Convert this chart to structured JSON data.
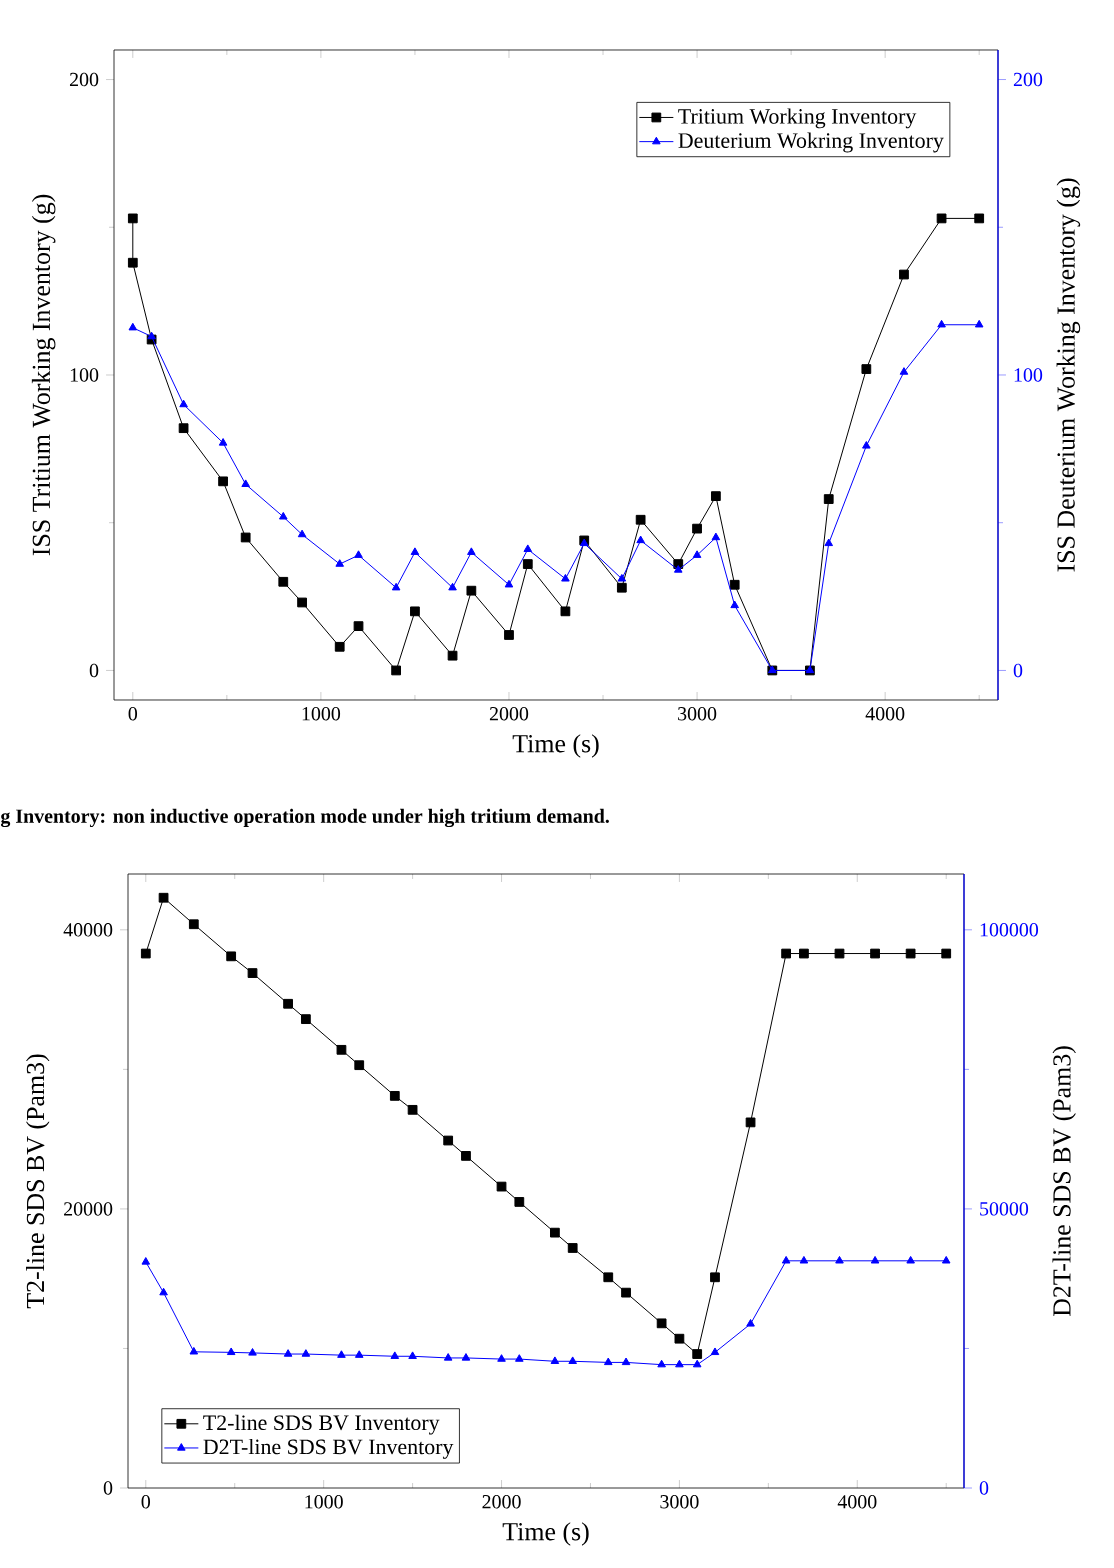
{
  "chart_data": [
    {
      "type": "line",
      "xlabel": "Time (s)",
      "ylabel": "ISS Tritium Working Inventory (g)",
      "y2label": "ISS Deuterium Working Inventory (g)",
      "xlim": [
        -100,
        4600
      ],
      "xticks": [
        0,
        {
          "value": 500,
          "label": null
        },
        1000,
        {
          "value": 1500,
          "label": null
        },
        2000,
        {
          "value": 2500,
          "label": null
        },
        3000,
        {
          "value": 3500,
          "label": null
        },
        4000,
        {
          "value": 4500,
          "label": null
        }
      ],
      "ylim": [
        -10,
        210
      ],
      "yticks": [
        0,
        {
          "value": 50,
          "label": null
        },
        100,
        {
          "value": 150,
          "label": null
        },
        200
      ],
      "y2lim": [
        -10,
        210
      ],
      "y2ticks": [
        0,
        {
          "value": 50,
          "label": null
        },
        100,
        {
          "value": 150,
          "label": null
        },
        200
      ],
      "legend": "top right",
      "line_style": "solid",
      "annotations": [
        "g Inventory: non inductive operation mode under high tritium demand."
      ],
      "series": [
        {
          "name": "Tritium Working Inventory",
          "color": "#000000",
          "marker": "square",
          "axis": "y",
          "x": [
            0,
            0,
            100,
            270,
            480,
            600,
            800,
            900,
            1100,
            1200,
            1400,
            1500,
            1700,
            1800,
            2000,
            2100,
            2300,
            2400,
            2600,
            2700,
            2900,
            3000,
            3100,
            3200,
            3400,
            3600,
            3700,
            3900,
            4100,
            4300,
            4500
          ],
          "values": [
            153,
            138,
            112,
            82,
            64,
            45,
            30,
            23,
            8,
            15,
            0,
            20,
            5,
            27,
            12,
            36,
            20,
            44,
            28,
            51,
            36,
            48,
            59,
            29,
            0,
            0,
            58,
            102,
            134,
            153,
            153
          ]
        },
        {
          "name": "Deuterium Wokring Inventory",
          "color": "#0000ff",
          "marker": "triangle",
          "axis": "y2",
          "x": [
            0,
            100,
            270,
            480,
            600,
            800,
            900,
            1100,
            1200,
            1400,
            1500,
            1700,
            1800,
            2000,
            2100,
            2300,
            2400,
            2600,
            2700,
            2900,
            3000,
            3100,
            3200,
            3400,
            3600,
            3700,
            3900,
            4100,
            4300,
            4500
          ],
          "values": [
            116,
            113,
            90,
            77,
            63,
            52,
            46,
            36,
            39,
            28,
            40,
            28,
            40,
            29,
            41,
            31,
            43,
            31,
            44,
            34,
            39,
            45,
            22,
            0,
            0,
            43,
            76,
            101,
            117,
            117
          ]
        }
      ]
    },
    {
      "type": "line",
      "xlabel": "Time (s)",
      "ylabel": "T2-line SDS BV (Pam3)",
      "y2label": "D2T-line SDS BV (Pam3)",
      "xlim": [
        -100,
        4600
      ],
      "xticks": [
        0,
        {
          "value": 500,
          "label": null
        },
        1000,
        {
          "value": 1500,
          "label": null
        },
        2000,
        {
          "value": 2500,
          "label": null
        },
        3000,
        {
          "value": 3500,
          "label": null
        },
        4000,
        {
          "value": 4500,
          "label": null
        }
      ],
      "ylim": [
        0,
        44000
      ],
      "yticks": [
        0,
        {
          "value": 10000,
          "label": null
        },
        20000,
        {
          "value": 30000,
          "label": null
        },
        40000
      ],
      "y2lim": [
        0,
        110000
      ],
      "y2ticks": [
        0,
        {
          "value": 25000,
          "label": null
        },
        50000,
        {
          "value": 75000,
          "label": null
        },
        100000
      ],
      "legend": "bottom left",
      "line_style": "solid",
      "x": [
        0,
        100,
        270,
        480,
        600,
        800,
        900,
        1100,
        1200,
        1400,
        1500,
        1700,
        1800,
        2000,
        2100,
        2300,
        2400,
        2600,
        2700,
        2900,
        3000,
        3100,
        3200,
        3400,
        3600,
        3700,
        3900,
        4100,
        4300,
        4500
      ],
      "series": [
        {
          "name": "T2-line SDS BV Inventory",
          "color": "#000000",
          "marker": "square",
          "axis": "y",
          "values": [
            38300,
            42300,
            40400,
            38100,
            36900,
            34700,
            33600,
            31400,
            30300,
            28100,
            27100,
            24900,
            23800,
            21600,
            20500,
            18300,
            17200,
            15100,
            14000,
            11800,
            10700,
            9600,
            15100,
            26200,
            38300,
            38300,
            38300,
            38300,
            38300,
            38300
          ]
        },
        {
          "name": "D2T-line SDS BV Inventory",
          "color": "#0000ff",
          "marker": "triangle",
          "axis": "y2",
          "values": [
            40500,
            35000,
            24400,
            24300,
            24200,
            24000,
            24000,
            23800,
            23800,
            23600,
            23600,
            23300,
            23300,
            23100,
            23100,
            22700,
            22700,
            22500,
            22500,
            22100,
            22100,
            22100,
            24300,
            29400,
            40700,
            40700,
            40700,
            40700,
            40700,
            40700
          ]
        }
      ]
    }
  ]
}
